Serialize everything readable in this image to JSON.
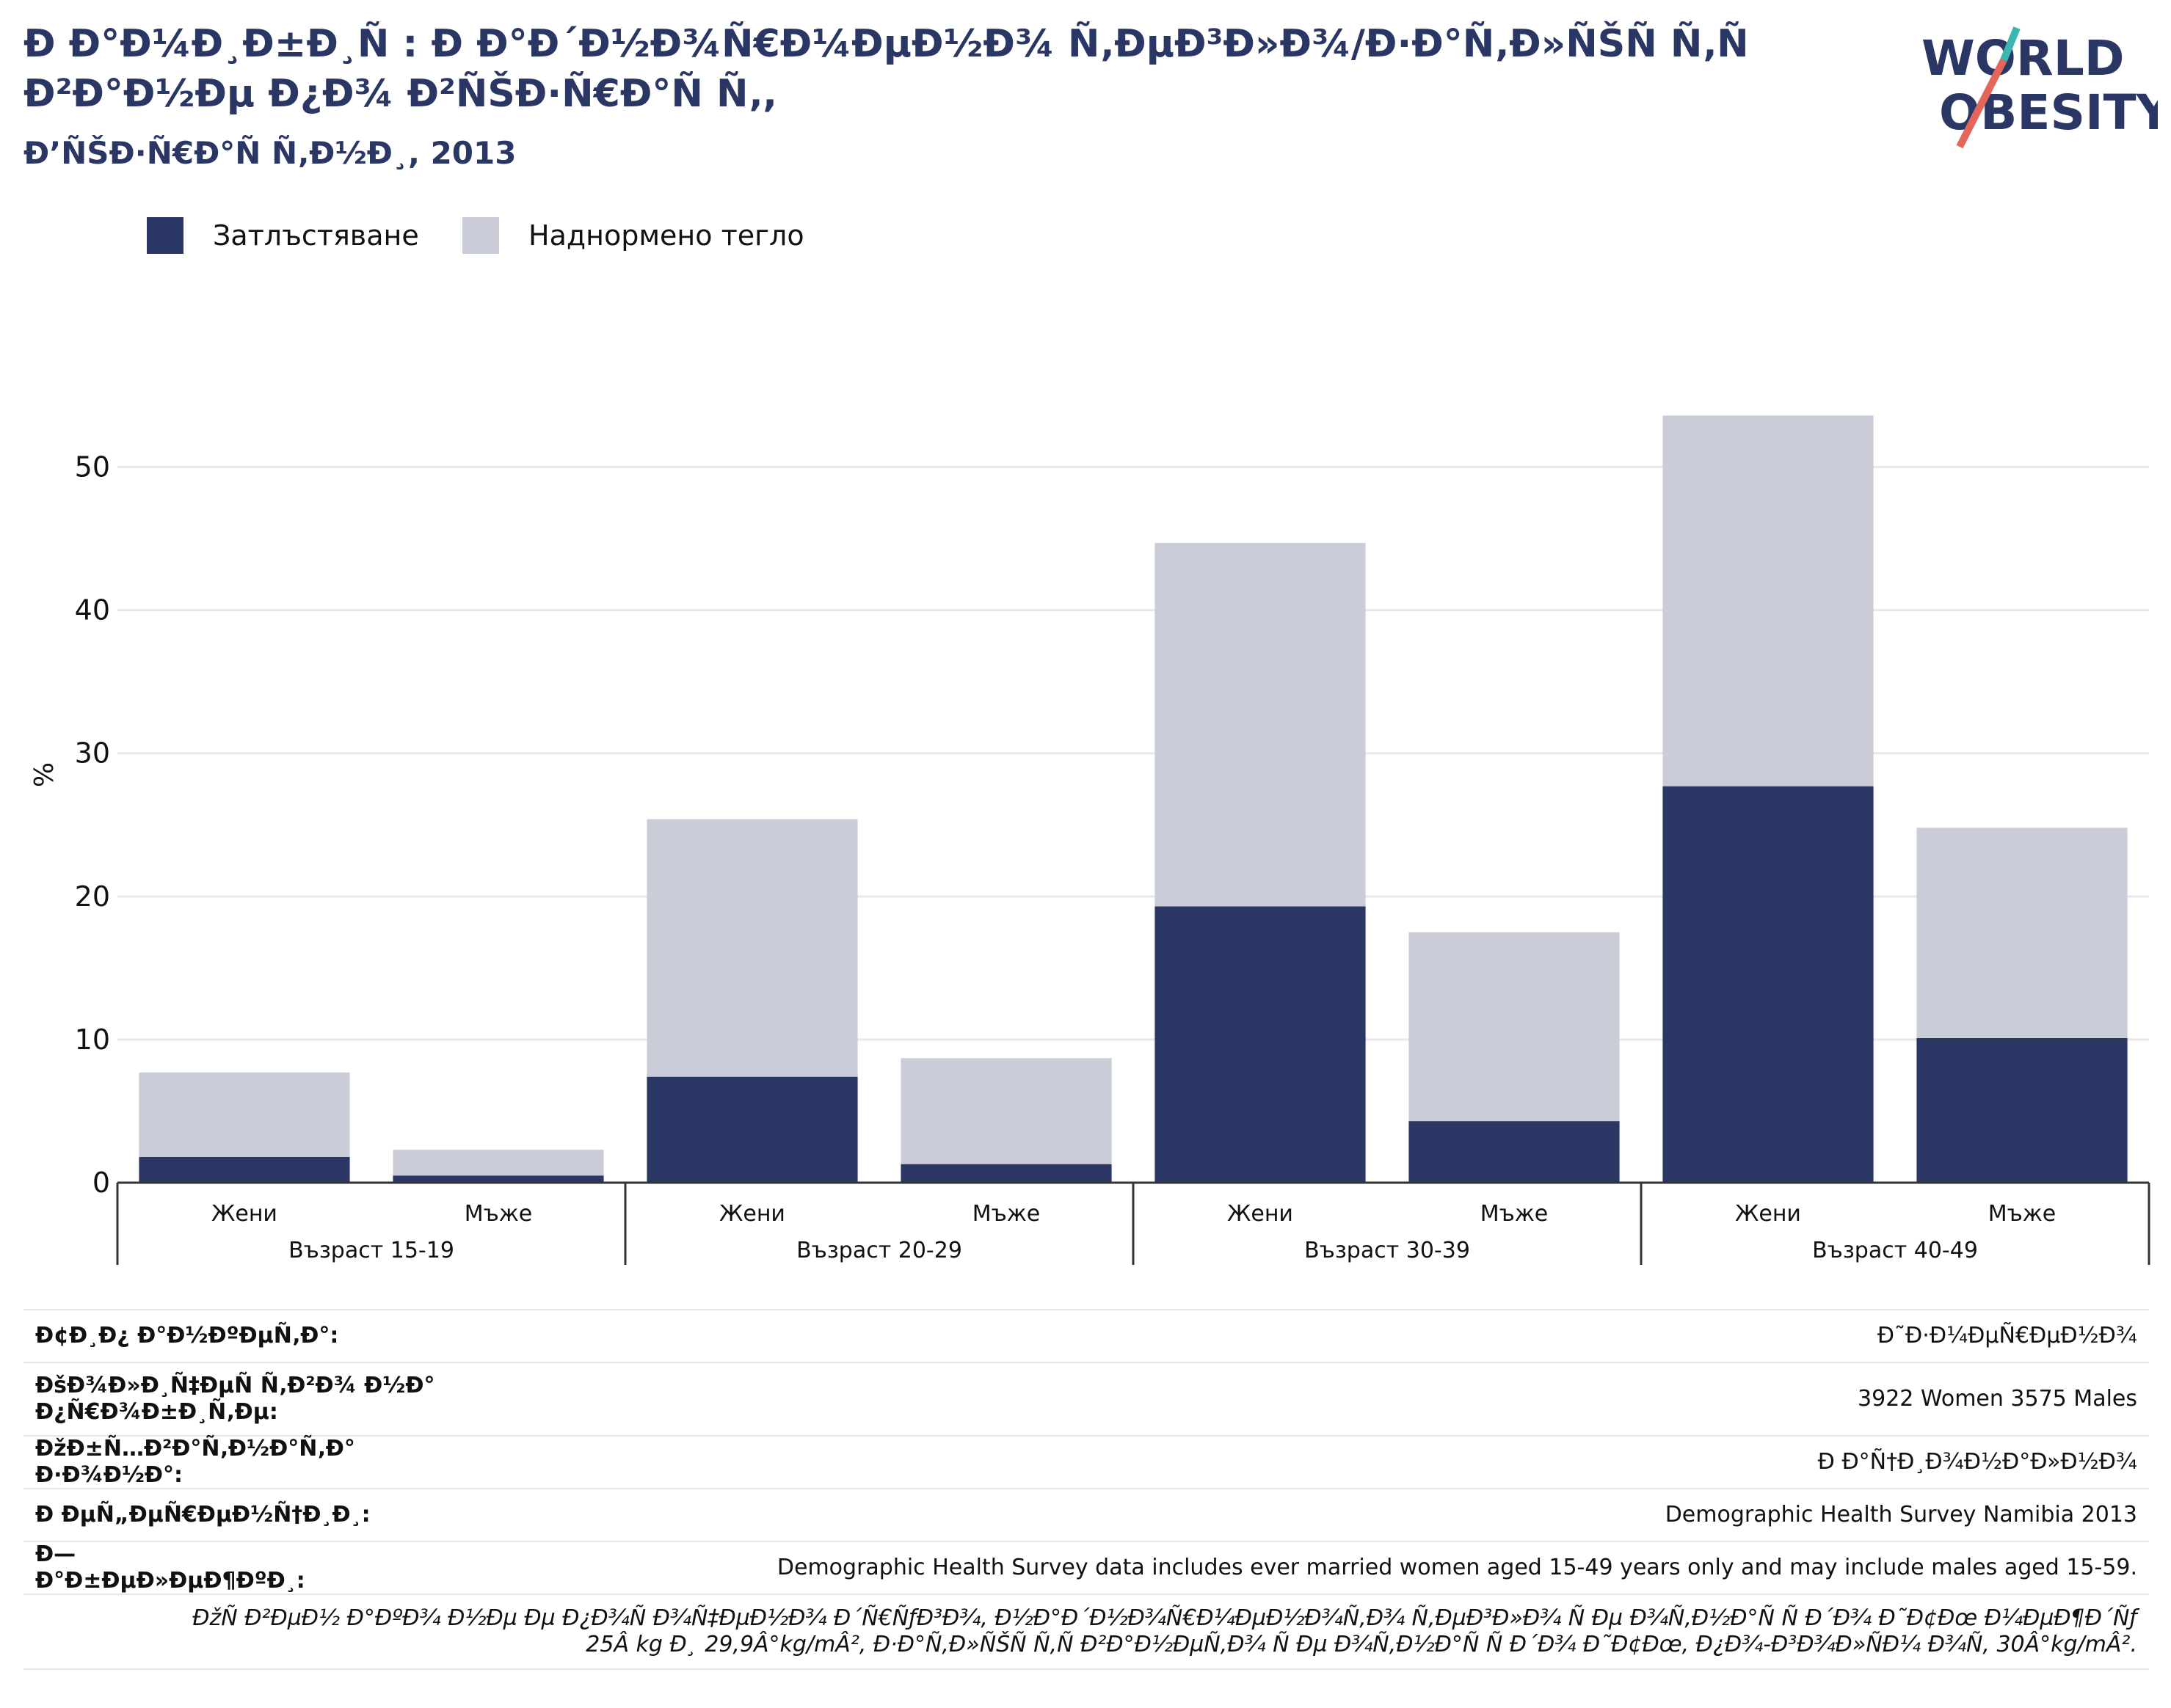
{
  "header": {
    "title": "Ð Ð°Ð¼Ð¸Ð±Ð¸Ñ : Ð Ð°Ð´Ð½Ð¾Ñ€Ð¼ÐµÐ½Ð¾ Ñ‚ÐµÐ³Ð»Ð¾/Ð·Ð°Ñ‚Ð»ÑŠÑ Ñ‚Ñ Ð²Ð°Ð½Ðµ Ð¿Ð¾ Ð²ÑŠÐ·Ñ€Ð°Ñ Ñ‚,",
    "subtitle": "Ð’ÑŠÐ·Ñ€Ð°Ñ Ñ‚Ð½Ð¸, 2013",
    "logo_line1": "WORLD",
    "logo_line2": "OBESITY"
  },
  "legend": [
    {
      "label": "Затлъстяване",
      "color": "#2a3663"
    },
    {
      "label": "Наднормено тегло",
      "color": "#cacdd8"
    }
  ],
  "chart_data": {
    "type": "bar",
    "stacked": true,
    "ylabel": "%",
    "ylim": [
      0,
      57
    ],
    "yticks": [
      0,
      10,
      20,
      30,
      40,
      50
    ],
    "grid": true,
    "groups": [
      "Възраст 15-19",
      "Възраст 20-29",
      "Възраст 30-39",
      "Възраст 40-49"
    ],
    "categories": [
      "Жени",
      "Мъже",
      "Жени",
      "Мъже",
      "Жени",
      "Мъже",
      "Жени",
      "Мъже"
    ],
    "series": [
      {
        "name": "Затлъстяване",
        "color": "#2a3663",
        "values": [
          1.8,
          0.5,
          7.4,
          1.3,
          19.3,
          4.3,
          27.7,
          10.1
        ]
      },
      {
        "name": "Наднормено тегло",
        "color": "#cacdd8",
        "values": [
          5.9,
          1.8,
          18.0,
          7.4,
          25.4,
          13.2,
          25.9,
          14.7
        ]
      }
    ]
  },
  "info": [
    {
      "key": "Ð¢Ð¸Ð¿ Ð°Ð½ÐºÐµÑ‚Ð°:",
      "value": "Ð˜Ð·Ð¼ÐµÑ€ÐµÐ½Ð¾"
    },
    {
      "key": "ÐšÐ¾Ð»Ð¸Ñ‡ÐµÑ Ñ‚Ð²Ð¾ Ð½Ð° Ð¿Ñ€Ð¾Ð±Ð¸Ñ‚Ðµ:",
      "value": "3922 Women 3575 Males"
    },
    {
      "key": "ÐžÐ±Ñ…Ð²Ð°Ñ‚Ð½Ð°Ñ‚Ð° Ð·Ð¾Ð½Ð°:",
      "value": "Ð Ð°Ñ†Ð¸Ð¾Ð½Ð°Ð»Ð½Ð¾"
    },
    {
      "key": "Ð ÐµÑ„ÐµÑ€ÐµÐ½Ñ†Ð¸Ð¸:",
      "value": "Demographic Health Survey Namibia 2013"
    },
    {
      "key": "Ð—Ð°Ð±ÐµÐ»ÐµÐ¶ÐºÐ¸:",
      "value": "Demographic Health Survey data includes ever married women aged 15-49 years only and may include males aged 15-59."
    }
  ],
  "footnote_line1": "ÐžÑ Ð²ÐµÐ½ Ð°ÐºÐ¾ Ð½Ðµ Ðµ Ð¿Ð¾Ñ Ð¾Ñ‡ÐµÐ½Ð¾ Ð´Ñ€ÑƒÐ³Ð¾, Ð½Ð°Ð´Ð½Ð¾Ñ€Ð¼ÐµÐ½Ð¾Ñ‚Ð¾ Ñ‚ÐµÐ³Ð»Ð¾ Ñ Ðµ Ð¾Ñ‚Ð½Ð°Ñ Ñ Ð´Ð¾ Ð˜Ð¢Ðœ Ð¼ÐµÐ¶Ð´Ñƒ",
  "footnote_line2": "25Â kg Ð¸ 29,9Â°kg/mÂ², Ð·Ð°Ñ‚Ð»ÑŠÑ Ñ‚Ñ Ð²Ð°Ð½ÐµÑ‚Ð¾ Ñ Ðµ Ð¾Ñ‚Ð½Ð°Ñ Ñ Ð´Ð¾ Ð˜Ð¢Ðœ, Ð¿Ð¾-Ð³Ð¾Ð»ÑÐ¼ Ð¾Ñ‚ 30Â°kg/mÂ²."
}
